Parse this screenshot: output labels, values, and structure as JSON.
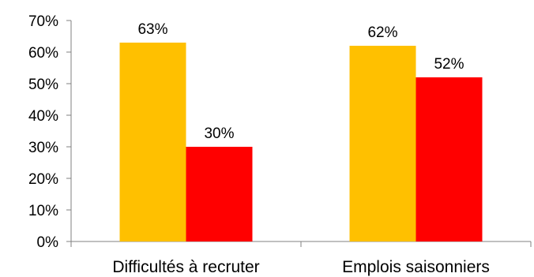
{
  "chart_data": {
    "type": "bar",
    "categories": [
      "Difficultés à recruter",
      "Emplois saisonniers"
    ],
    "series": [
      {
        "values": [
          63,
          62
        ],
        "color": "#FFC000",
        "labels": [
          "63%",
          "62%"
        ]
      },
      {
        "values": [
          30,
          52
        ],
        "color": "#FF0000",
        "labels": [
          "30%",
          "52%"
        ]
      }
    ],
    "ylim": [
      0,
      70
    ],
    "yticks": [
      0,
      10,
      20,
      30,
      40,
      50,
      60,
      70
    ],
    "ytick_labels": [
      "0%",
      "10%",
      "20%",
      "30%",
      "40%",
      "50%",
      "60%",
      "70%"
    ],
    "grid": false,
    "legend": "none"
  }
}
